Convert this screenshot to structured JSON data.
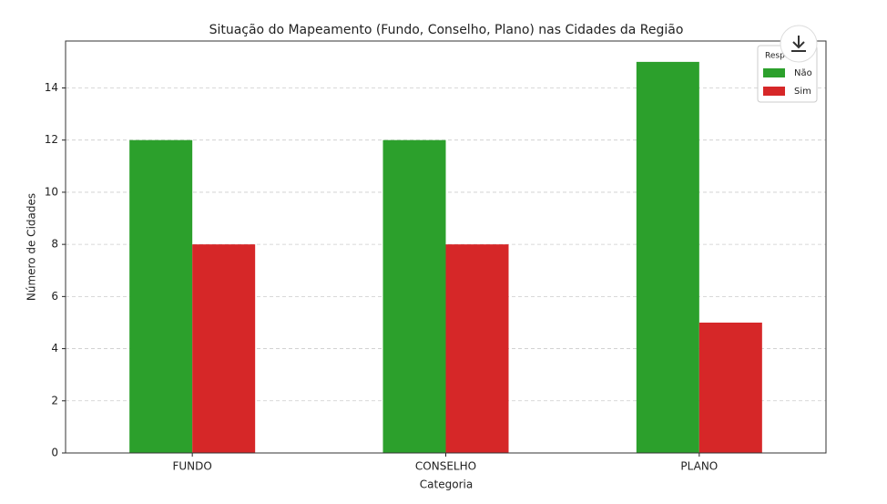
{
  "chart_data": {
    "type": "bar",
    "title": "Situação do Mapeamento (Fundo, Conselho, Plano) nas Cidades da Região",
    "x_label": "Categoria",
    "y_label": "Número de Cidades",
    "categories": [
      "FUNDO",
      "CONSELHO",
      "PLANO"
    ],
    "series": [
      {
        "name": "Não",
        "color": "#2ca02c",
        "values": [
          12,
          12,
          15
        ]
      },
      {
        "name": "Sim",
        "color": "#d62728",
        "values": [
          8,
          8,
          5
        ]
      }
    ],
    "legend_title": "Resposta",
    "legend_position": "upper right",
    "ylim": [
      0,
      15.8
    ],
    "yticks": [
      0,
      2,
      4,
      6,
      8,
      10,
      12,
      14
    ],
    "grid": true
  }
}
